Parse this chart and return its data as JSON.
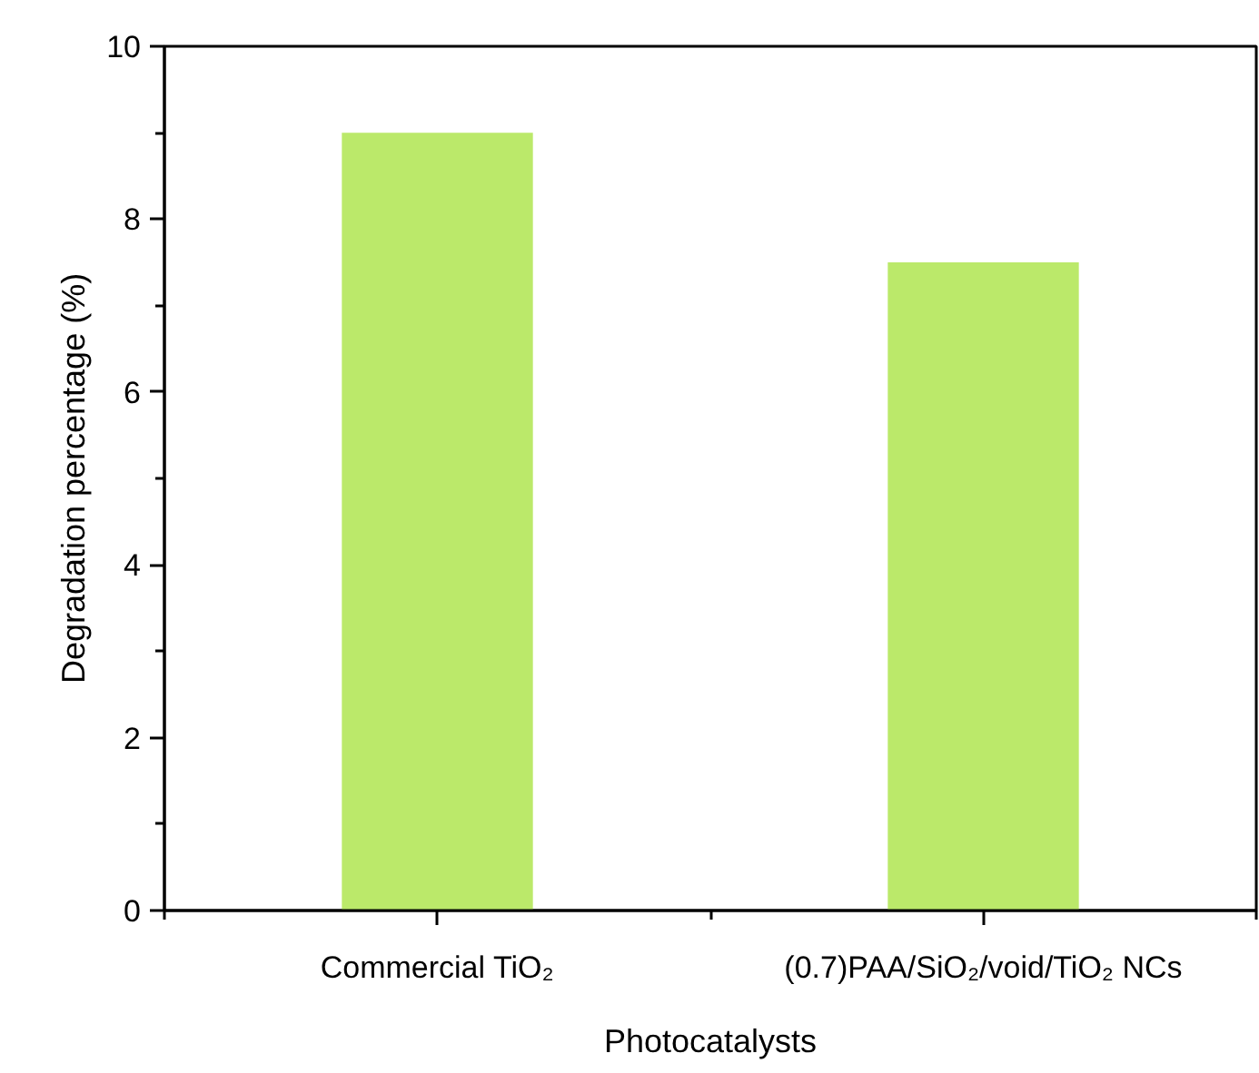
{
  "chart_data": {
    "type": "bar",
    "xlabel": "Photocatalysts",
    "ylabel": "Degradation percentage (%)",
    "categories": [
      "Commercial TiO₂",
      "(0.7)PAA/SiO₂/void/TiO₂ NCs"
    ],
    "values": [
      9.0,
      7.5
    ],
    "color": "#bbe96a",
    "ylim": [
      0,
      10
    ],
    "yticks": [
      0,
      2,
      4,
      6,
      8,
      10
    ],
    "grid": false
  }
}
